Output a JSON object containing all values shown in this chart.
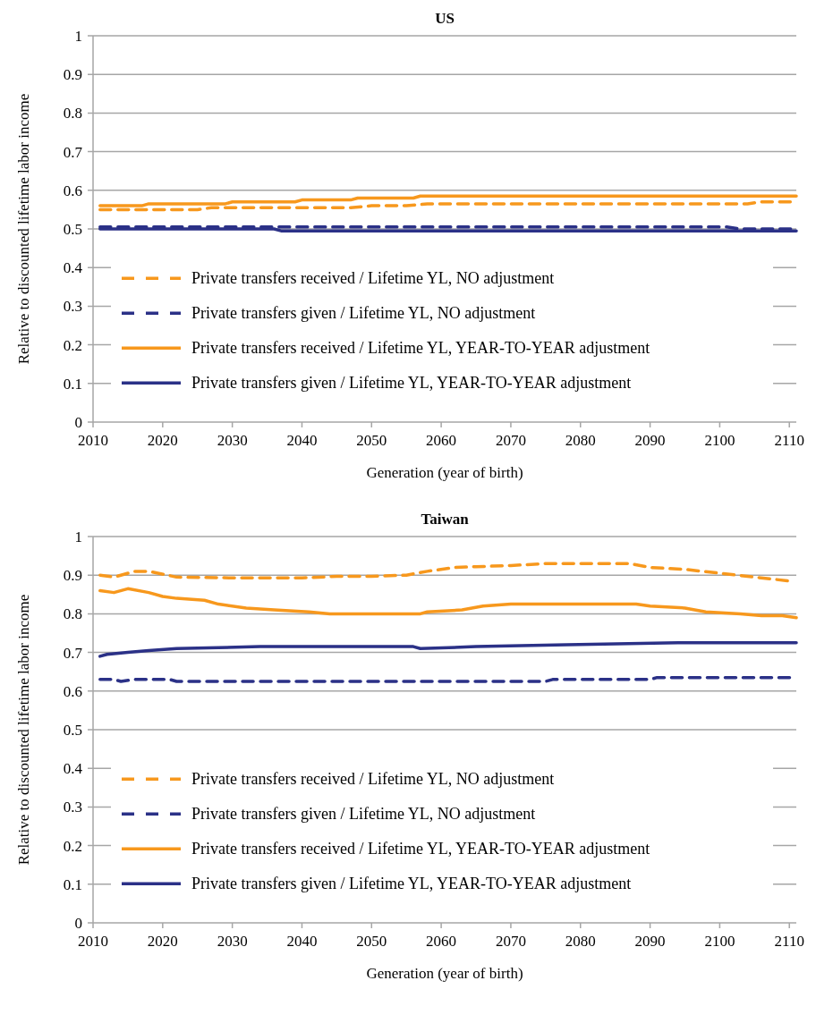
{
  "chart_data": [
    {
      "type": "line",
      "title": "US",
      "xlabel": "Generation (year of birth)",
      "ylabel": "Relative to discounted lifetime labor income",
      "xlim": [
        2010,
        2111
      ],
      "xticks": [
        2010,
        2020,
        2030,
        2040,
        2050,
        2060,
        2070,
        2080,
        2090,
        2100,
        2110
      ],
      "ylim": [
        0,
        1
      ],
      "yticks": [
        0,
        0.1,
        0.2,
        0.3,
        0.4,
        0.5,
        0.6,
        0.7,
        0.8,
        0.9,
        1
      ],
      "grid": "y",
      "legend": "bottom left",
      "marker": "none",
      "series": [
        {
          "name": "Private transfers received / Lifetime YL, NO adjustment",
          "color": "#f7981d",
          "line_style": "dashed",
          "x": [
            2011,
            2025,
            2027,
            2047,
            2050,
            2055,
            2058,
            2104,
            2106,
            2111
          ],
          "values": [
            0.55,
            0.55,
            0.555,
            0.555,
            0.56,
            0.56,
            0.565,
            0.565,
            0.57,
            0.57
          ]
        },
        {
          "name": "Private transfers given / Lifetime YL, NO adjustment",
          "color": "#2b3187",
          "line_style": "dashed",
          "x": [
            2011,
            2101,
            2103,
            2111
          ],
          "values": [
            0.505,
            0.505,
            0.5,
            0.5
          ]
        },
        {
          "name": "Private transfers received / Lifetime YL, YEAR-TO-YEAR adjustment",
          "color": "#f7981d",
          "line_style": "solid",
          "x": [
            2011,
            2017,
            2018,
            2029,
            2030,
            2039,
            2040,
            2047,
            2048,
            2056,
            2057,
            2111
          ],
          "values": [
            0.56,
            0.56,
            0.565,
            0.565,
            0.57,
            0.57,
            0.575,
            0.575,
            0.58,
            0.58,
            0.585,
            0.585
          ]
        },
        {
          "name": "Private transfers given / Lifetime YL, YEAR-TO-YEAR adjustment",
          "color": "#2b3187",
          "line_style": "solid",
          "x": [
            2011,
            2036,
            2037,
            2111
          ],
          "values": [
            0.5,
            0.5,
            0.495,
            0.495
          ]
        }
      ]
    },
    {
      "type": "line",
      "title": "Taiwan",
      "xlabel": "Generation (year of birth)",
      "ylabel": "Relative to discounted lifetime labor income",
      "xlim": [
        2010,
        2111
      ],
      "xticks": [
        2010,
        2020,
        2030,
        2040,
        2050,
        2060,
        2070,
        2080,
        2090,
        2100,
        2110
      ],
      "ylim": [
        0,
        1
      ],
      "yticks": [
        0,
        0.1,
        0.2,
        0.3,
        0.4,
        0.5,
        0.6,
        0.7,
        0.8,
        0.9,
        1
      ],
      "grid": "y",
      "legend": "bottom left",
      "marker": "none",
      "series": [
        {
          "name": "Private transfers received / Lifetime YL, NO adjustment",
          "color": "#f7981d",
          "line_style": "dashed",
          "x": [
            2011,
            2013,
            2016,
            2018,
            2022,
            2030,
            2040,
            2045,
            2050,
            2055,
            2058,
            2062,
            2065,
            2070,
            2075,
            2080,
            2087,
            2090,
            2095,
            2100,
            2105,
            2110
          ],
          "values": [
            0.9,
            0.895,
            0.91,
            0.91,
            0.895,
            0.893,
            0.893,
            0.897,
            0.897,
            0.9,
            0.91,
            0.92,
            0.922,
            0.925,
            0.93,
            0.93,
            0.93,
            0.92,
            0.915,
            0.905,
            0.895,
            0.885
          ]
        },
        {
          "name": "Private transfers given / Lifetime YL, NO adjustment",
          "color": "#2b3187",
          "line_style": "dashed",
          "x": [
            2011,
            2013,
            2014,
            2016,
            2021,
            2022,
            2075,
            2076,
            2090,
            2091,
            2111
          ],
          "values": [
            0.63,
            0.63,
            0.625,
            0.63,
            0.63,
            0.625,
            0.625,
            0.63,
            0.63,
            0.635,
            0.635
          ]
        },
        {
          "name": "Private transfers received / Lifetime YL, YEAR-TO-YEAR adjustment",
          "color": "#f7981d",
          "line_style": "solid",
          "x": [
            2011,
            2013,
            2015,
            2018,
            2020,
            2022,
            2026,
            2028,
            2032,
            2036,
            2041,
            2044,
            2057,
            2058,
            2063,
            2066,
            2070,
            2088,
            2090,
            2095,
            2098,
            2103,
            2106,
            2109,
            2111
          ],
          "values": [
            0.86,
            0.855,
            0.865,
            0.855,
            0.845,
            0.84,
            0.835,
            0.825,
            0.815,
            0.81,
            0.805,
            0.8,
            0.8,
            0.805,
            0.81,
            0.82,
            0.825,
            0.825,
            0.82,
            0.815,
            0.805,
            0.8,
            0.795,
            0.795,
            0.79
          ]
        },
        {
          "name": "Private transfers given / Lifetime YL, YEAR-TO-YEAR adjustment",
          "color": "#2b3187",
          "line_style": "solid",
          "x": [
            2011,
            2012,
            2015,
            2018,
            2022,
            2034,
            2056,
            2057,
            2065,
            2078,
            2094,
            2111
          ],
          "values": [
            0.69,
            0.695,
            0.7,
            0.705,
            0.71,
            0.715,
            0.715,
            0.71,
            0.715,
            0.72,
            0.725,
            0.725
          ]
        }
      ]
    }
  ]
}
